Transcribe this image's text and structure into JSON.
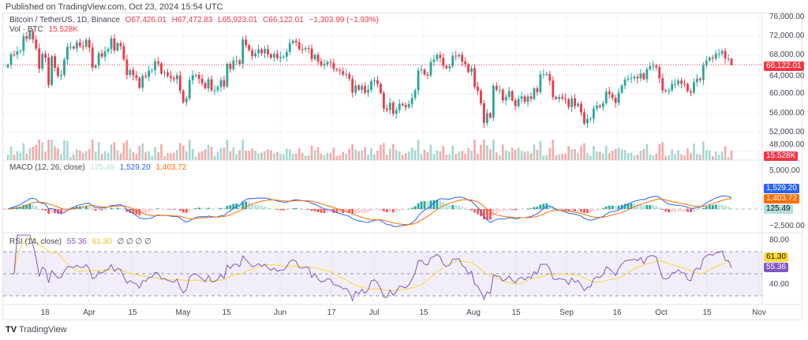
{
  "published": "Published on TradingView.com, Oct 23, 2024 15:54 UTC",
  "legend": {
    "symbol": "Bitcoin / TetherUS, 1D, Binance",
    "open": "O67,426.01",
    "high": "H67,472.83",
    "low": "L65,923.01",
    "close": "C66,122.01",
    "change": "−1,303.99 (−1.93%)",
    "vol_label": "Vol · BTC",
    "vol_value": "15.528K"
  },
  "macd_legend": {
    "label": "MACD (12, 26, close)",
    "hist": "125.49",
    "macd": "1,529.20",
    "signal": "1,403.72"
  },
  "rsi_legend": {
    "label": "RSI (14, close)",
    "rsi": "55.36",
    "ma": "61.30",
    "extra": "∅ ∅ ∅ ∅"
  },
  "price_axis": [
    "76,000.00",
    "72,000.00",
    "68,000.00",
    "64,000.00",
    "60,000.00",
    "56,000.00",
    "52,000.00",
    "48,000.00"
  ],
  "macd_axis": [
    "5,000.00",
    "−2,500.00"
  ],
  "rsi_axis": [
    "80.00",
    "40.00"
  ],
  "tags": {
    "price": "66,122.01",
    "vol": "15.528K",
    "macd": "1,529.20",
    "signal": "1,403.72",
    "hist": "125.49",
    "rsi_ma": "61.30",
    "rsi": "55.36"
  },
  "time_axis": [
    "18",
    "Apr",
    "15",
    "May",
    "15",
    "Jun",
    "17",
    "Jul",
    "15",
    "Aug",
    "15",
    "Sep",
    "16",
    "Oct",
    "15",
    "Nov"
  ],
  "footer": "TradingView",
  "colors": {
    "up": "#26a69a",
    "down": "#f23645",
    "macd": "#2962ff",
    "signal": "#ff6d00",
    "rsi": "#7e57c2",
    "rsi_ma": "#fdd835"
  },
  "chart_data": {
    "type": "candlestick",
    "x_start": "2024-03-06",
    "x_end": "2024-10-23",
    "ylim": [
      46000,
      77000
    ],
    "last_open": 67426.01,
    "last_high": 67472.83,
    "last_low": 65923.01,
    "last_close": 66122.01,
    "closes_k": [
      66.1,
      68.3,
      68.2,
      68.9,
      69.0,
      72.1,
      71.5,
      73.1,
      71.4,
      69.5,
      65.3,
      68.4,
      67.6,
      61.9,
      67.9,
      65.5,
      63.8,
      64.0,
      67.2,
      69.9,
      69.9,
      69.5,
      70.8,
      70.0,
      69.9,
      71.3,
      69.7,
      65.5,
      66.0,
      68.5,
      67.8,
      68.9,
      69.4,
      71.6,
      69.1,
      70.6,
      70.0,
      67.2,
      64.0,
      65.0,
      63.9,
      63.4,
      61.3,
      63.8,
      63.6,
      64.9,
      65.0,
      66.8,
      66.4,
      64.3,
      64.5,
      63.8,
      63.4,
      63.1,
      63.9,
      60.7,
      58.3,
      59.1,
      62.9,
      63.9,
      64.0,
      63.2,
      62.3,
      61.2,
      63.1,
      60.8,
      60.8,
      61.5,
      62.9,
      61.6,
      66.3,
      65.2,
      67.0,
      67.0,
      66.3,
      71.4,
      70.2,
      69.2,
      67.9,
      68.5,
      69.3,
      68.5,
      69.4,
      68.3,
      67.6,
      68.4,
      67.5,
      67.8,
      67.8,
      68.8,
      70.6,
      71.1,
      70.8,
      69.4,
      69.3,
      69.6,
      69.5,
      67.3,
      68.2,
      66.8,
      66.0,
      66.2,
      66.7,
      66.5,
      65.2,
      65.0,
      64.8,
      64.1,
      64.2,
      63.2,
      60.3,
      61.8,
      60.9,
      61.7,
      60.3,
      60.9,
      62.7,
      62.9,
      62.1,
      60.2,
      57.0,
      56.7,
      58.2,
      55.9,
      56.7,
      58.0,
      57.7,
      57.3,
      57.9,
      59.2,
      60.8,
      64.9,
      65.1,
      64.1,
      63.9,
      66.7,
      67.2,
      68.2,
      67.6,
      65.9,
      65.4,
      65.8,
      68.0,
      67.9,
      68.2,
      66.8,
      66.2,
      64.6,
      65.4,
      61.5,
      60.7,
      58.1,
      54.0,
      56.0,
      55.1,
      61.7,
      60.9,
      60.9,
      58.7,
      59.4,
      60.6,
      58.7,
      57.5,
      59.0,
      59.5,
      58.4,
      59.5,
      59.0,
      61.2,
      60.4,
      64.1,
      64.2,
      64.2,
      62.8,
      59.4,
      59.0,
      59.4,
      59.1,
      58.9,
      57.3,
      59.1,
      57.5,
      58.0,
      56.2,
      53.9,
      54.8,
      54.9,
      57.0,
      57.6,
      57.3,
      58.1,
      60.5,
      60.0,
      59.2,
      58.2,
      60.3,
      61.8,
      63.0,
      63.2,
      63.3,
      63.6,
      63.3,
      64.3,
      63.1,
      65.2,
      65.8,
      65.9,
      65.6,
      63.3,
      60.8,
      60.6,
      60.8,
      62.1,
      62.1,
      62.8,
      62.2,
      62.1,
      60.6,
      60.3,
      62.5,
      63.2,
      62.9,
      66.0,
      67.0,
      67.6,
      67.4,
      68.4,
      68.4,
      69.0,
      67.4,
      67.4,
      66.1
    ],
    "grid": true
  }
}
